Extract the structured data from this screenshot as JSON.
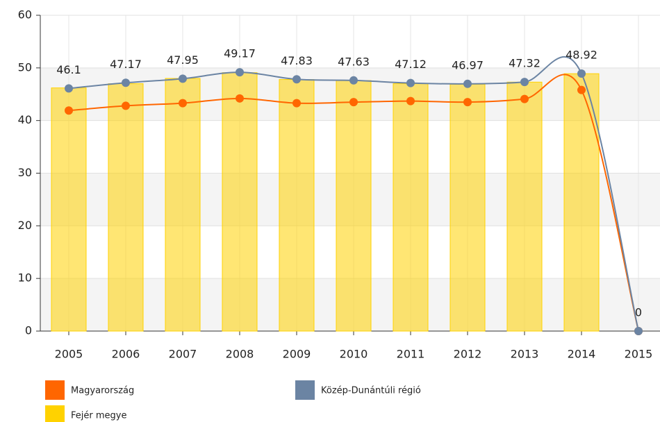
{
  "chart_data": {
    "type": "combo",
    "smooth": true,
    "grid": true,
    "categories": [
      "2005",
      "2006",
      "2007",
      "2008",
      "2009",
      "2010",
      "2011",
      "2012",
      "2013",
      "2014",
      "2015"
    ],
    "ylim": [
      0,
      60
    ],
    "yticks": [
      0,
      10,
      20,
      30,
      40,
      50,
      60
    ],
    "series": [
      {
        "name": "Magyarország",
        "type": "line",
        "color": "#ff6600",
        "values": [
          41.9,
          42.8,
          43.3,
          44.2,
          43.3,
          43.5,
          43.7,
          43.5,
          44.1,
          45.8,
          0
        ]
      },
      {
        "name": "Közép-Dunántúli régió",
        "type": "line",
        "color": "#6b84a3",
        "data_labels": true,
        "values": [
          46.1,
          47.17,
          47.95,
          49.17,
          47.83,
          47.63,
          47.12,
          46.97,
          47.32,
          48.92,
          0
        ]
      },
      {
        "name": "Fejér megye",
        "type": "bar",
        "color": "#ffd200",
        "values": [
          46.2,
          47.0,
          48.0,
          49.1,
          47.8,
          47.6,
          47.0,
          46.9,
          47.3,
          48.9,
          0
        ]
      }
    ]
  }
}
